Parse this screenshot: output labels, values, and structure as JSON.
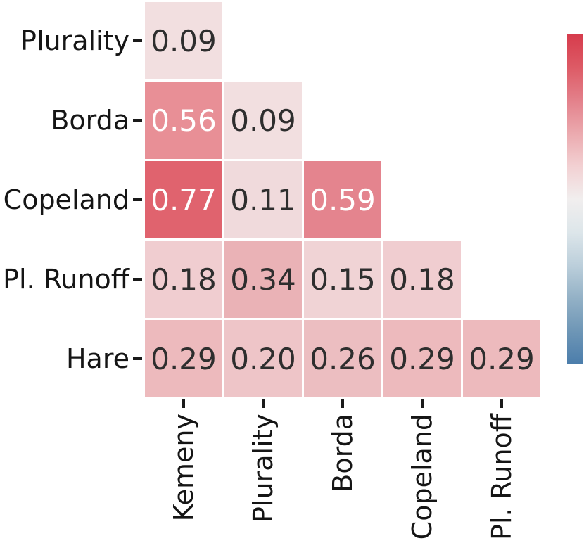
{
  "figure": {
    "background": "#ffffff",
    "axis_text_color": "#151515",
    "tick_color": "#1a1a1a",
    "annot_dark": "#2e2e2e",
    "annot_light": "#ffffff"
  },
  "chart_data": {
    "type": "heatmap",
    "title": "",
    "xlabel": "",
    "ylabel": "",
    "shape": "lower-triangle",
    "grid": false,
    "legend_position": "colorbar-right",
    "rows": [
      "Plurality",
      "Borda",
      "Copeland",
      "Pl. Runoff",
      "Hare"
    ],
    "cols": [
      "Kemeny",
      "Plurality",
      "Borda",
      "Copeland",
      "Pl. Runoff"
    ],
    "values": [
      [
        0.09,
        null,
        null,
        null,
        null
      ],
      [
        0.56,
        0.09,
        null,
        null,
        null
      ],
      [
        0.77,
        0.11,
        0.59,
        null,
        null
      ],
      [
        0.18,
        0.34,
        0.15,
        0.18,
        null
      ],
      [
        0.29,
        0.2,
        0.26,
        0.29,
        0.29
      ]
    ],
    "value_format": "0.00",
    "light_text_threshold": 0.5,
    "cell_colors": {
      "0.09": "#f2dfe0",
      "0.11": "#f0dadc",
      "0.15": "#f0d3d5",
      "0.18": "#f0cdd0",
      "0.20": "#eec5c8",
      "0.26": "#ecbec1",
      "0.29": "#edbabd",
      "0.34": "#eab2b6",
      "0.56": "#e88f96",
      "0.59": "#e4848e",
      "0.77": "#e0636e"
    },
    "colorbar": {
      "orientation": "vertical",
      "tick_labels": [],
      "top_color": "#d63b4c",
      "center_color": "#f1eeee",
      "bottom_color": "#4b7dab",
      "gradient_stops": [
        "#d63b4c",
        "#dd5a65",
        "#e3808a",
        "#eba9ae",
        "#f2d0d2",
        "#f1eeee",
        "#dde6ea",
        "#bccfdb",
        "#93b1c6",
        "#6e96b6",
        "#4b7dab"
      ]
    }
  }
}
